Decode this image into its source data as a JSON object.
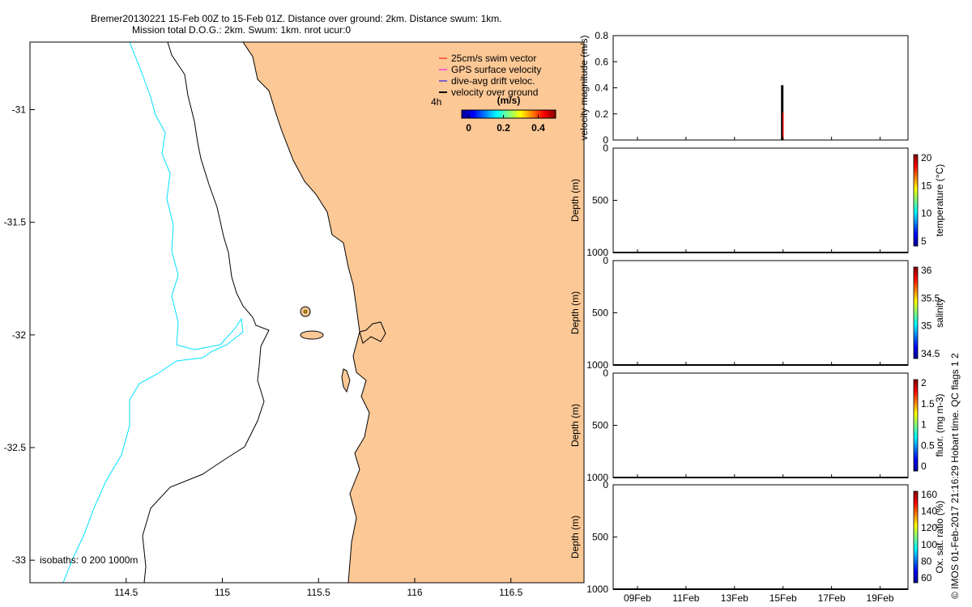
{
  "header": {
    "line1": "Bremer20130221 15-Feb 00Z to 15-Feb 01Z. Distance over ground: 2km. Distance swum: 1km.",
    "line2": "Mission total D.O.G.: 2km. Swum: 1km. nrot ucur:0"
  },
  "credit": "© IMOS 01-Feb-2017 21:16:29 Hobart time. QC flags 1  2",
  "colors": {
    "land": "#fcc896",
    "isobath_0": "#000000",
    "isobath_1000": "#00e0ff",
    "swim_vector": "#ff0000",
    "gps_velocity": "#ff00ff",
    "drift_velocity": "#0000ff",
    "ground_velocity": "#000000"
  },
  "chart_data": [
    {
      "type": "map",
      "x_ticks": [
        "114.5",
        "115",
        "115.5",
        "116",
        "116.5"
      ],
      "x_tick_values": [
        114.5,
        115,
        115.5,
        116,
        116.5
      ],
      "y_ticks": [
        "-31",
        "-31.5",
        "-32",
        "-32.5",
        "-33"
      ],
      "y_tick_values": [
        -31,
        -31.5,
        -32,
        -32.5,
        -33
      ],
      "xlim": [
        114.0,
        116.88
      ],
      "ylim": [
        -33.1,
        -30.7
      ],
      "legend": [
        {
          "label": "25cm/s swim vector",
          "color": "#ff0000"
        },
        {
          "label": "GPS surface velocity",
          "color": "#ff00ff"
        },
        {
          "label": "dive-avg drift veloc.",
          "color": "#0000ff"
        },
        {
          "label": "velocity over ground",
          "color": "#000000"
        }
      ],
      "time_label": "4h",
      "colorbar": {
        "title": "(m/s)",
        "ticks": [
          "0",
          "0.2",
          "0.4"
        ],
        "range": [
          -0.04,
          0.5
        ]
      },
      "isobaths_label": "isobaths: 0   200  1000m"
    },
    {
      "type": "bar",
      "ylabel": "velocity magnitude (m/s)",
      "y_ticks": [
        "0",
        "0.2",
        "0.4",
        "0.6",
        "0.8"
      ],
      "ylim": [
        0,
        0.8
      ],
      "series": [
        {
          "color": "#000000",
          "x": [
            15.0
          ],
          "values": [
            0.42
          ]
        },
        {
          "color": "#ff0000",
          "x": [
            15.0
          ],
          "values": [
            0.21
          ]
        }
      ]
    },
    {
      "type": "heatmap",
      "ylabel": "Depth (m)",
      "y_ticks": [
        "500",
        "1000"
      ],
      "colorbar_label": "temperature (°C)",
      "colorbar_ticks": [
        "5",
        "10",
        "15",
        "20"
      ]
    },
    {
      "type": "heatmap",
      "ylabel": "Depth (m)",
      "y_ticks": [
        "500",
        "1000"
      ],
      "colorbar_label": "salinity",
      "colorbar_ticks": [
        "34.5",
        "35",
        "35.5",
        "36"
      ]
    },
    {
      "type": "heatmap",
      "ylabel": "Depth (m)",
      "y_ticks": [
        "500",
        "1000"
      ],
      "colorbar_label": "fluor. (mg m-3)",
      "colorbar_ticks": [
        "0",
        "0.5",
        "1",
        "1.5",
        "2"
      ]
    },
    {
      "type": "heatmap",
      "ylabel": "Depth (m)",
      "y_ticks": [
        "500",
        "1000"
      ],
      "colorbar_label": "Ox. sat. ratio (%)",
      "colorbar_ticks": [
        "60",
        "80",
        "100",
        "120",
        "140",
        "160"
      ]
    }
  ],
  "time_axis": {
    "ticks": [
      "09Feb",
      "11Feb",
      "13Feb",
      "15Feb",
      "17Feb",
      "19Feb"
    ],
    "tick_days": [
      9,
      11,
      13,
      15,
      17,
      19
    ],
    "xlim_days": [
      8.0,
      20.15
    ]
  }
}
